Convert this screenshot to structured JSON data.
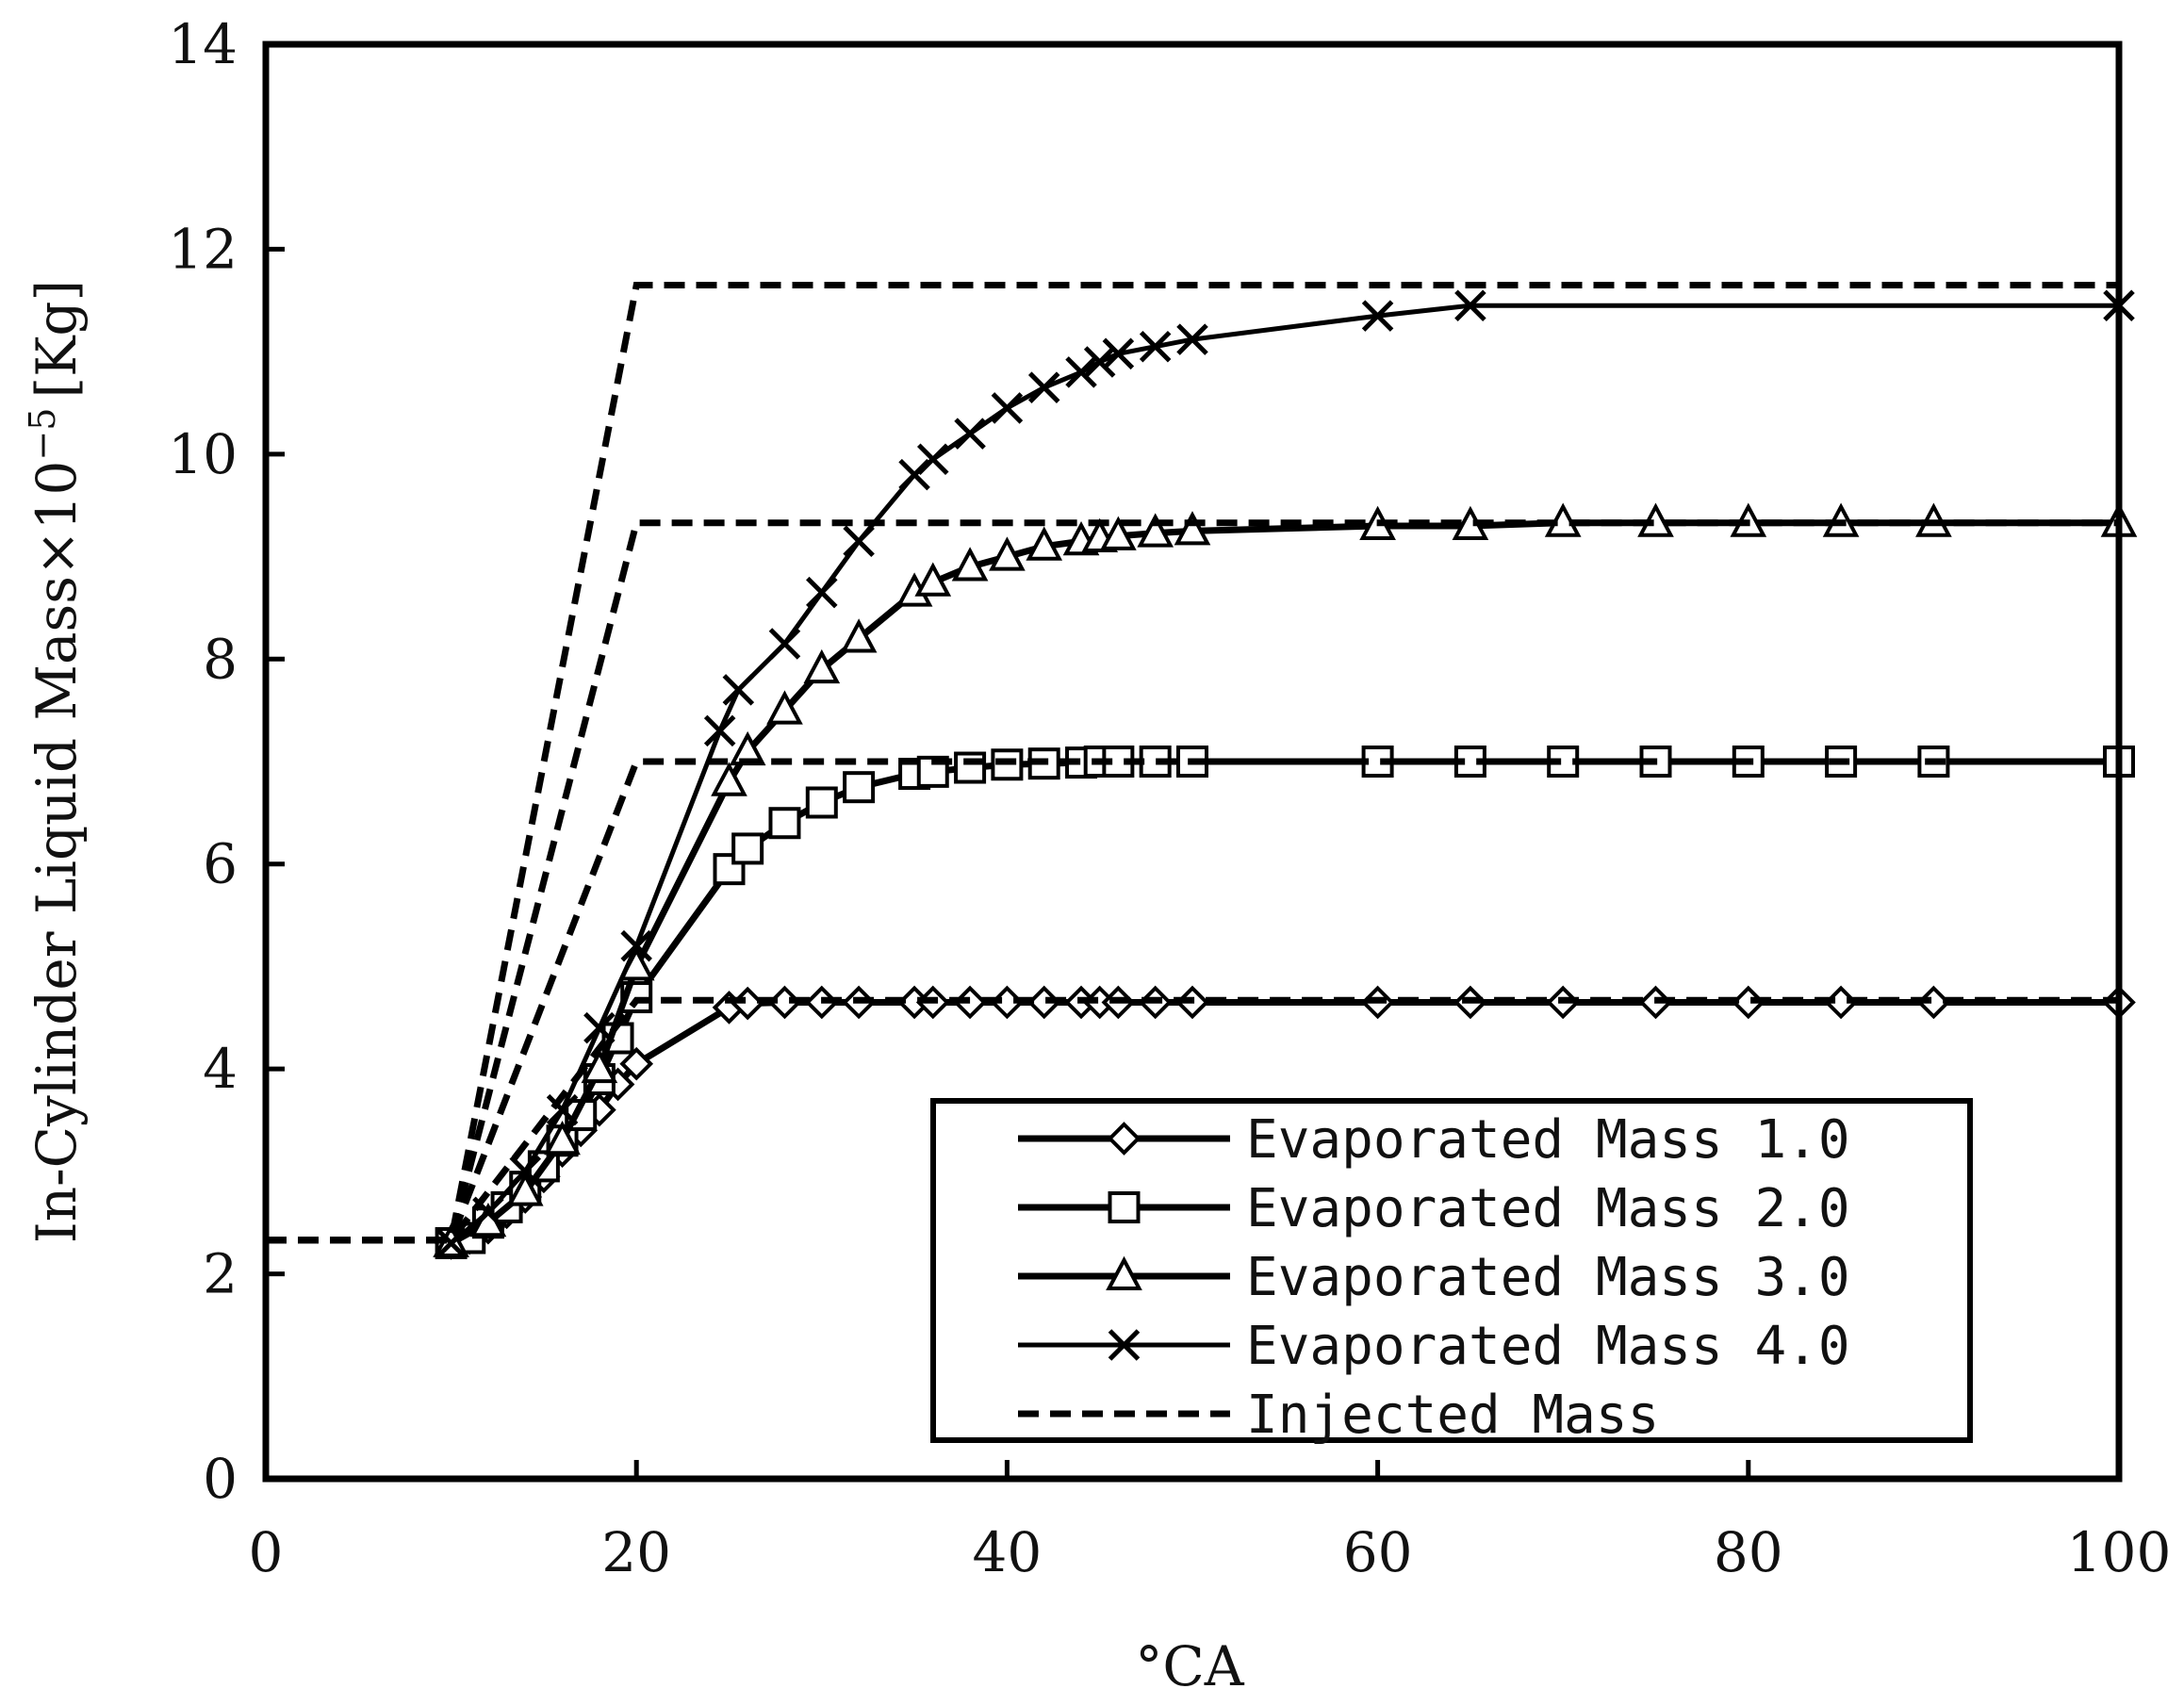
{
  "chart_data": {
    "type": "line",
    "xlabel": "°CA",
    "ylabel": "In-Cylinder Liquid Mass×10",
    "ylabel_exponent": "−5",
    "ylabel_unit": "[Kg]",
    "xlim": [
      0,
      100
    ],
    "ylim": [
      0,
      14
    ],
    "xticks": [
      "0",
      "20",
      "40",
      "60",
      "80",
      "100"
    ],
    "yticks": [
      "0",
      "2",
      "4",
      "6",
      "8",
      "10",
      "12",
      "14"
    ],
    "grid": false,
    "legend_position": "bottom-right",
    "series": [
      {
        "name": "Evaporated Mass 1.0",
        "marker": "diamond",
        "linestyle": "solid",
        "x": [
          10,
          11,
          12,
          13,
          14,
          15,
          16,
          17,
          18,
          19,
          20,
          25,
          26,
          28,
          30,
          32,
          35,
          36,
          38,
          40,
          42,
          44,
          45,
          46,
          48,
          50,
          60,
          65,
          70,
          75,
          80,
          85,
          90,
          100
        ],
        "y": [
          2.3,
          2.35,
          2.45,
          2.6,
          2.75,
          2.95,
          3.2,
          3.4,
          3.6,
          3.85,
          4.05,
          4.6,
          4.64,
          4.65,
          4.65,
          4.65,
          4.65,
          4.65,
          4.65,
          4.65,
          4.65,
          4.65,
          4.65,
          4.65,
          4.65,
          4.65,
          4.65,
          4.65,
          4.65,
          4.65,
          4.65,
          4.65,
          4.65,
          4.65
        ]
      },
      {
        "name": "Evaporated Mass 2.0",
        "marker": "square",
        "linestyle": "solid",
        "x": [
          10,
          11,
          12,
          13,
          14,
          15,
          16,
          17,
          18,
          19,
          20,
          25,
          26,
          28,
          30,
          32,
          35,
          36,
          38,
          40,
          42,
          44,
          45,
          46,
          48,
          50,
          60,
          65,
          70,
          75,
          80,
          85,
          90,
          100
        ],
        "y": [
          2.3,
          2.35,
          2.5,
          2.65,
          2.85,
          3.05,
          3.3,
          3.55,
          3.9,
          4.3,
          4.7,
          5.95,
          6.15,
          6.4,
          6.6,
          6.75,
          6.88,
          6.9,
          6.94,
          6.97,
          6.98,
          6.99,
          7.0,
          7.0,
          7.0,
          7.0,
          7.0,
          7.0,
          7.0,
          7.0,
          7.0,
          7.0,
          7.0,
          7.0
        ]
      },
      {
        "name": "Evaporated Mass 3.0",
        "marker": "triangle",
        "linestyle": "solid",
        "x": [
          10,
          12,
          14,
          16,
          18,
          20,
          25,
          26,
          28,
          30,
          32,
          35,
          36,
          38,
          40,
          42,
          44,
          45,
          46,
          48,
          50,
          60,
          65,
          70,
          75,
          80,
          85,
          90,
          100
        ],
        "y": [
          2.3,
          2.5,
          2.8,
          3.3,
          4.0,
          5.0,
          6.8,
          7.1,
          7.5,
          7.9,
          8.2,
          8.65,
          8.75,
          8.9,
          9.0,
          9.1,
          9.15,
          9.18,
          9.2,
          9.23,
          9.25,
          9.3,
          9.3,
          9.33,
          9.33,
          9.33,
          9.33,
          9.33,
          9.33
        ]
      },
      {
        "name": "Evaporated Mass 4.0",
        "marker": "x",
        "linestyle": "solid",
        "x": [
          10,
          12,
          14,
          16,
          18,
          20,
          24.5,
          25.5,
          28,
          30,
          32,
          35,
          36,
          38,
          40,
          42,
          44,
          45,
          46,
          48,
          50,
          60,
          65,
          100
        ],
        "y": [
          2.3,
          2.6,
          3.0,
          3.6,
          4.4,
          5.2,
          7.3,
          7.7,
          8.15,
          8.65,
          9.15,
          9.8,
          9.95,
          10.2,
          10.45,
          10.65,
          10.8,
          10.9,
          10.98,
          11.05,
          11.12,
          11.35,
          11.45,
          11.45
        ]
      },
      {
        "name": "Injected Mass",
        "marker": "none",
        "linestyle": "dashed",
        "segments": [
          {
            "x": [
              0,
              10,
              20,
              100
            ],
            "y": [
              2.33,
              2.33,
              11.65,
              11.65
            ]
          },
          {
            "x": [
              0,
              10,
              20,
              100
            ],
            "y": [
              2.33,
              2.33,
              9.33,
              9.33
            ]
          },
          {
            "x": [
              0,
              10,
              20,
              100
            ],
            "y": [
              2.33,
              2.33,
              7.0,
              7.0
            ]
          },
          {
            "x": [
              0,
              10,
              20,
              100
            ],
            "y": [
              2.33,
              2.33,
              4.67,
              4.67
            ]
          }
        ]
      }
    ]
  }
}
